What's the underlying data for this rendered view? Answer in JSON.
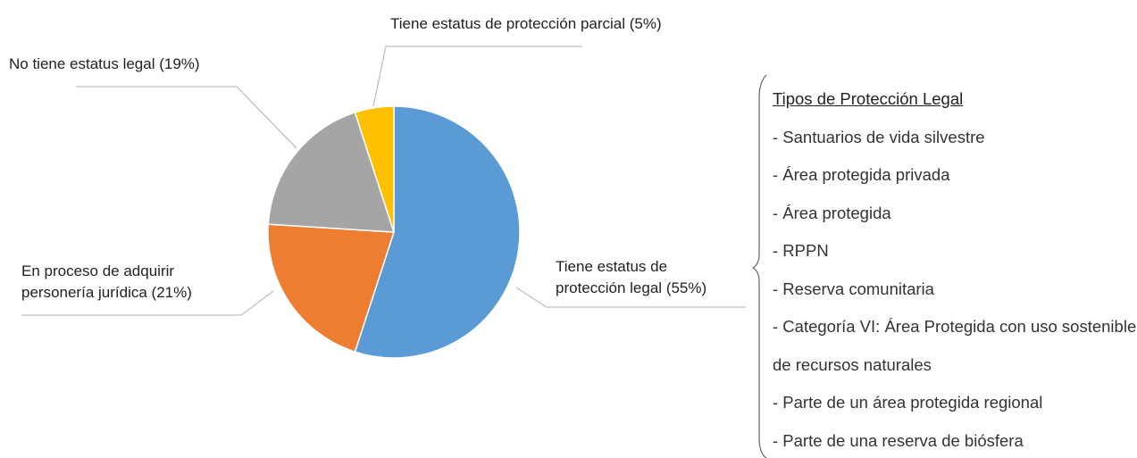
{
  "chart_data": {
    "type": "pie",
    "categories": [
      "Tiene estatus de protección legal",
      "En proceso de adquirir personería jurídica",
      "No tiene estatus legal",
      "Tiene estatus de protección parcial"
    ],
    "values": [
      55,
      21,
      19,
      5
    ],
    "value_labels": [
      "(55%)",
      "(21%)",
      "(19%)",
      "(5%)"
    ],
    "colors": [
      "#5b9bd5",
      "#ed7d31",
      "#a5a5a5",
      "#ffc000"
    ]
  },
  "sidebar": {
    "title": "Tipos de Protección Legal",
    "items": [
      "- Santuarios de vida silvestre",
      "- Área protegida privada",
      "- Área protegida",
      "- RPPN",
      "- Reserva comunitaria",
      "- Categoría VI: Área Protegida con uso sostenible de recursos naturales",
      "- Parte de un área protegida regional",
      "- Parte de una reserva de biósfera"
    ]
  }
}
